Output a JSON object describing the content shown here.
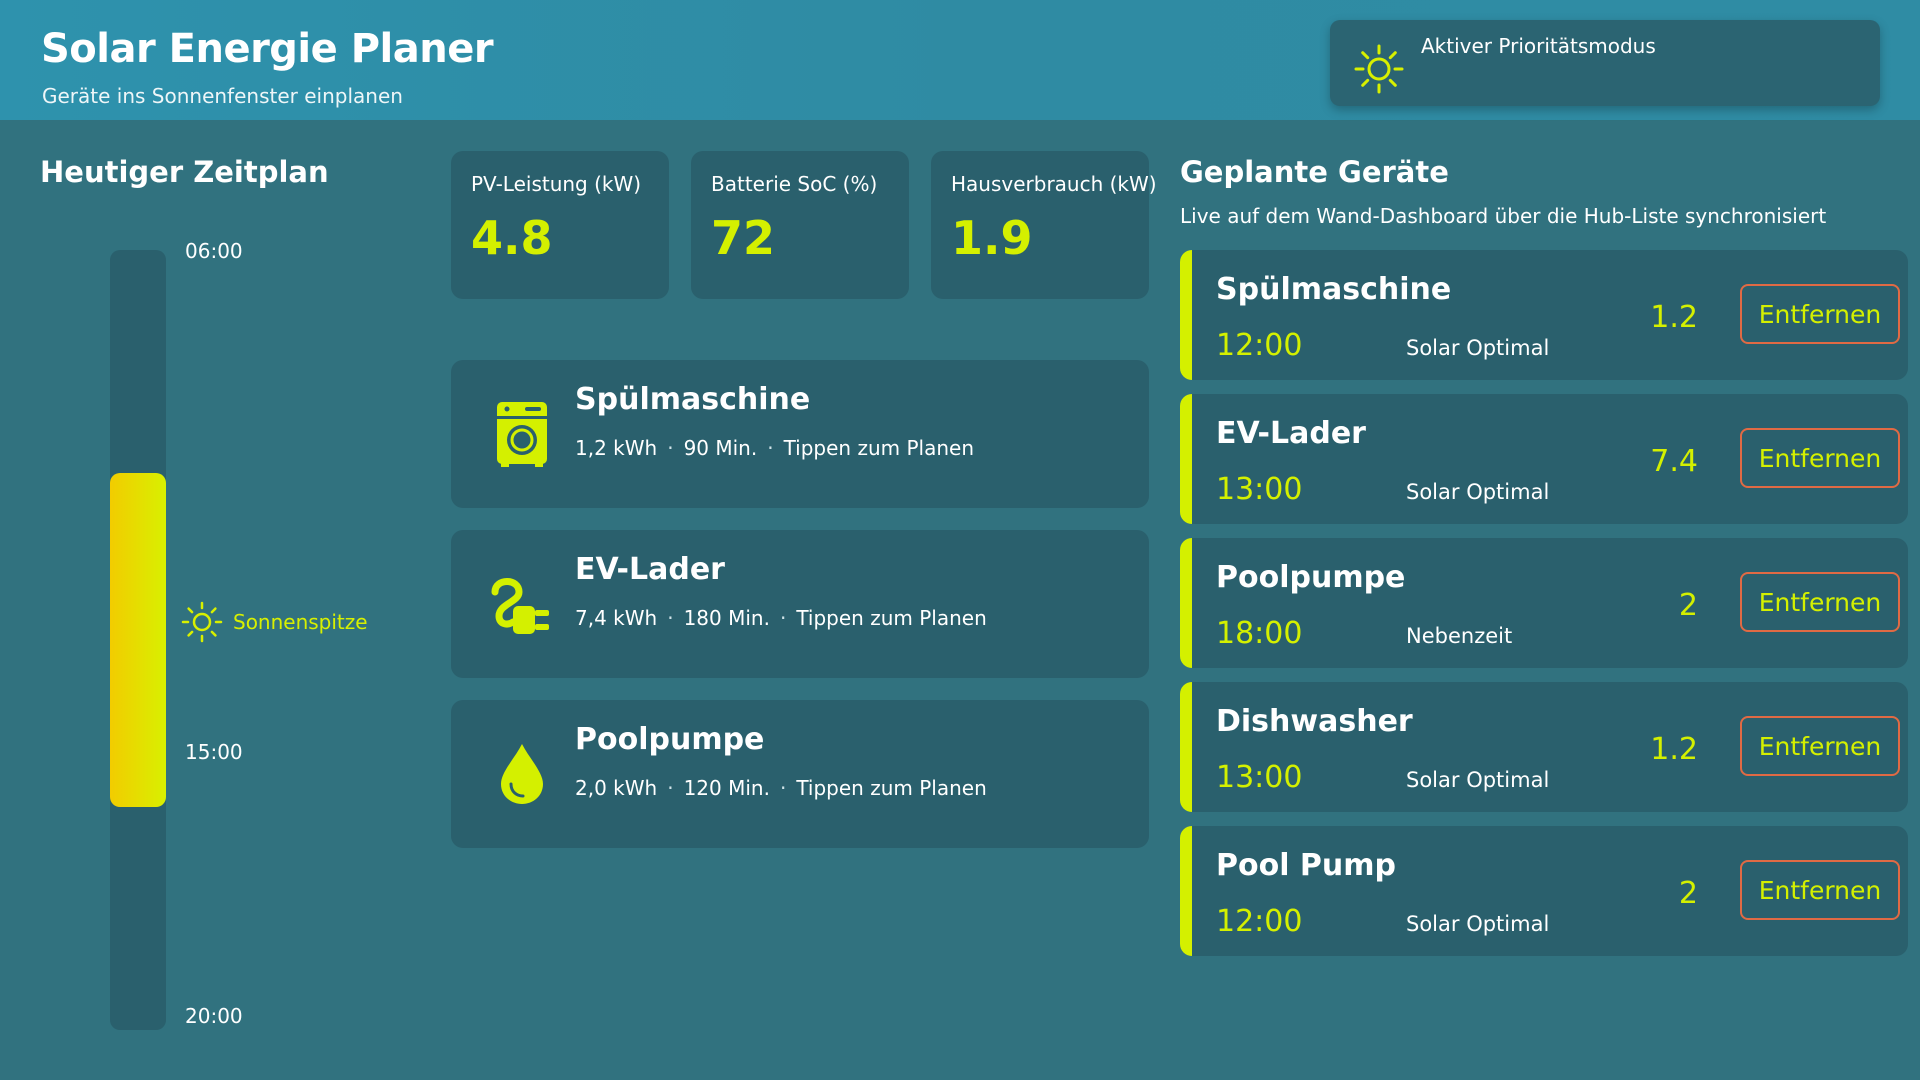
{
  "header": {
    "title": "Solar Energie Planer",
    "subtitle": "Geräte ins Sonnenfenster einplanen",
    "priority_label": "Aktiver Prioritätsmodus"
  },
  "timeline": {
    "title": "Heutiger Zeitplan",
    "time_start": "06:00",
    "time_mid": "15:00",
    "time_end": "20:00",
    "peak_label": "Sonnenspitze"
  },
  "stats": [
    {
      "label": "PV-Leistung (kW)",
      "value": "4.8"
    },
    {
      "label": "Batterie SoC (%)",
      "value": "72"
    },
    {
      "label": "Hausverbrauch (kW)",
      "value": "1.9"
    }
  ],
  "devices": [
    {
      "name": "Spülmaschine",
      "energy": "1,2 kWh",
      "duration": "90 Min.",
      "hint": "Tippen zum Planen",
      "icon": "washing-machine-icon"
    },
    {
      "name": "EV-Lader",
      "energy": "7,4 kWh",
      "duration": "180 Min.",
      "hint": "Tippen zum Planen",
      "icon": "ev-plug-icon"
    },
    {
      "name": "Poolpumpe",
      "energy": "2,0 kWh",
      "duration": "120 Min.",
      "hint": "Tippen zum Planen",
      "icon": "water-drop-icon"
    }
  ],
  "planned": {
    "title": "Geplante Geräte",
    "subtitle": "Live auf dem Wand-Dashboard über die Hub-Liste synchronisiert",
    "remove_label": "Entfernen",
    "items": [
      {
        "name": "Spülmaschine",
        "time": "12:00",
        "mode": "Solar Optimal",
        "kw": "1.2"
      },
      {
        "name": "EV-Lader",
        "time": "13:00",
        "mode": "Solar Optimal",
        "kw": "7.4"
      },
      {
        "name": "Poolpumpe",
        "time": "18:00",
        "mode": "Nebenzeit",
        "kw": "2"
      },
      {
        "name": "Dishwasher",
        "time": "13:00",
        "mode": "Solar Optimal",
        "kw": "1.2"
      },
      {
        "name": "Pool Pump",
        "time": "12:00",
        "mode": "Solar Optimal",
        "kw": "2"
      }
    ]
  },
  "colors": {
    "accent": "#d4f000",
    "card": "#2a606d",
    "remove_border": "#e06a44"
  }
}
